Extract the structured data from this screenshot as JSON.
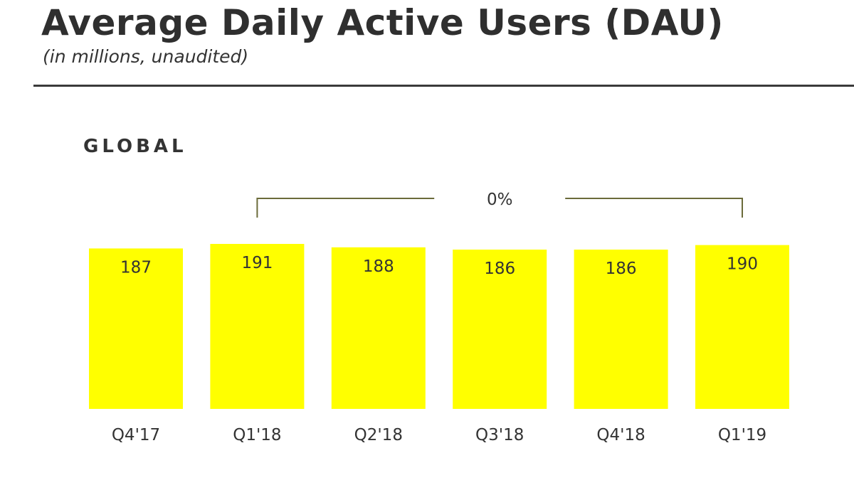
{
  "header": {
    "title": "Average Daily Active Users (DAU)",
    "subtitle": "(in millions, unaudited)"
  },
  "section_label": "GLOBAL",
  "colors": {
    "bar": "#ffff00",
    "bracket": "#6b6b3a",
    "rule": "#3a3a3a"
  },
  "chart_data": {
    "type": "bar",
    "categories": [
      "Q4'17",
      "Q1'18",
      "Q2'18",
      "Q3'18",
      "Q4'18",
      "Q1'19"
    ],
    "values": [
      187,
      191,
      188,
      186,
      186,
      190
    ],
    "data_labels": [
      "187",
      "191",
      "188",
      "186",
      "186",
      "190"
    ],
    "annotation": {
      "type": "growth-bracket",
      "from": "Q1'18",
      "to": "Q1'19",
      "label": "0%"
    },
    "legend": "none",
    "grid": false
  }
}
